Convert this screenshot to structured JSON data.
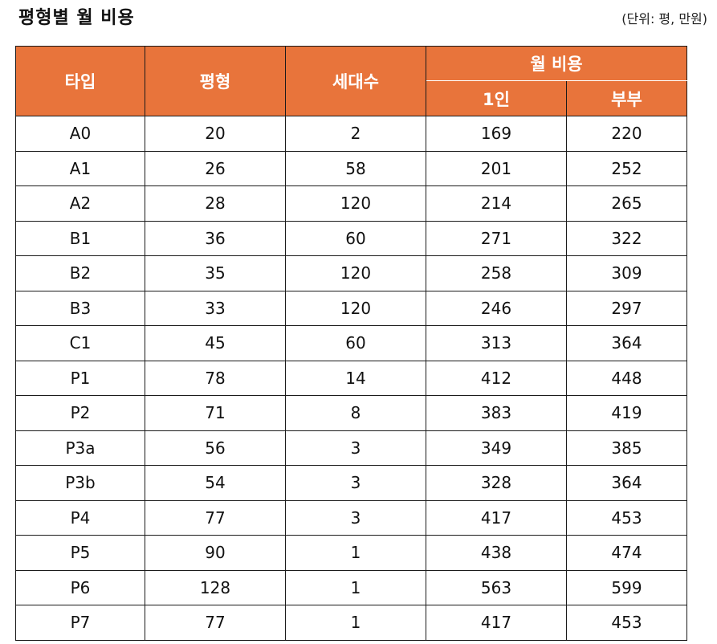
{
  "title": "평형별 월 비용",
  "unit_note": "(단위: 평, 만원)",
  "table": {
    "headers": {
      "type": "타입",
      "size": "평형",
      "households": "세대수",
      "monthly_cost": "월 비용",
      "single": "1인",
      "couple": "부부"
    },
    "rows": [
      {
        "type": "A0",
        "size": "20",
        "households": "2",
        "single": "169",
        "couple": "220"
      },
      {
        "type": "A1",
        "size": "26",
        "households": "58",
        "single": "201",
        "couple": "252"
      },
      {
        "type": "A2",
        "size": "28",
        "households": "120",
        "single": "214",
        "couple": "265"
      },
      {
        "type": "B1",
        "size": "36",
        "households": "60",
        "single": "271",
        "couple": "322"
      },
      {
        "type": "B2",
        "size": "35",
        "households": "120",
        "single": "258",
        "couple": "309"
      },
      {
        "type": "B3",
        "size": "33",
        "households": "120",
        "single": "246",
        "couple": "297"
      },
      {
        "type": "C1",
        "size": "45",
        "households": "60",
        "single": "313",
        "couple": "364"
      },
      {
        "type": "P1",
        "size": "78",
        "households": "14",
        "single": "412",
        "couple": "448"
      },
      {
        "type": "P2",
        "size": "71",
        "households": "8",
        "single": "383",
        "couple": "419"
      },
      {
        "type": "P3a",
        "size": "56",
        "households": "3",
        "single": "349",
        "couple": "385"
      },
      {
        "type": "P3b",
        "size": "54",
        "households": "3",
        "single": "328",
        "couple": "364"
      },
      {
        "type": "P4",
        "size": "77",
        "households": "3",
        "single": "417",
        "couple": "453"
      },
      {
        "type": "P5",
        "size": "90",
        "households": "1",
        "single": "438",
        "couple": "474"
      },
      {
        "type": "P6",
        "size": "128",
        "households": "1",
        "single": "563",
        "couple": "599"
      },
      {
        "type": "P7",
        "size": "77",
        "households": "1",
        "single": "417",
        "couple": "453"
      }
    ]
  },
  "colors": {
    "header_bg": "#e8743b",
    "header_text": "#ffffff",
    "border": "#1a1a1a"
  }
}
